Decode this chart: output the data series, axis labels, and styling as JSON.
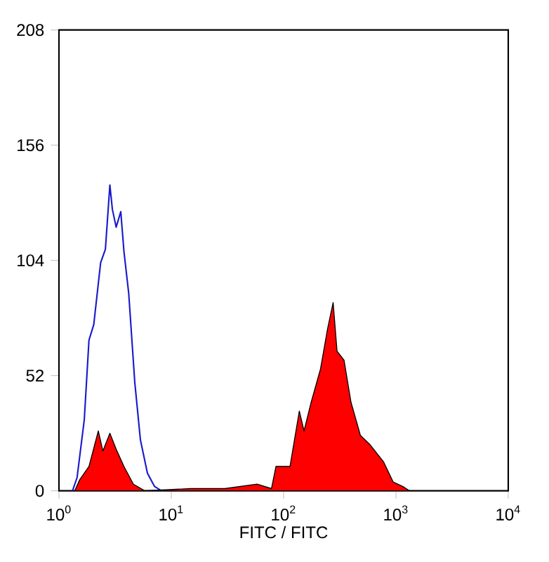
{
  "chart_data": {
    "type": "area",
    "xlabel": "FITC / FITC",
    "log": "x",
    "xlim": [
      1,
      10000
    ],
    "ylim": [
      0,
      208
    ],
    "xticks": [
      {
        "value": 1,
        "label": "10$^{0}$"
      },
      {
        "value": 10,
        "label": "10$^{1}$"
      },
      {
        "value": 100,
        "label": "10$^{2}$"
      },
      {
        "value": 1000,
        "label": "10$^{3}$"
      },
      {
        "value": 10000,
        "label": "10$^{4}$"
      }
    ],
    "yticks": [
      0,
      52,
      104,
      156,
      208
    ],
    "grid": false,
    "series": [
      {
        "type": "line",
        "color": "#1a1acc",
        "x": [
          1.32,
          1.45,
          1.68,
          1.85,
          2.04,
          2.35,
          2.59,
          2.84,
          2.99,
          3.23,
          3.55,
          3.79,
          4.18,
          4.73,
          5.31,
          6.13,
          7.08,
          8.18
        ],
        "values": [
          0,
          6,
          32,
          68,
          75,
          103,
          109,
          138,
          127,
          119,
          126,
          108,
          89,
          49,
          23,
          8,
          2,
          0
        ]
      },
      {
        "color": "#ff0000",
        "x": [
          1.38,
          1.53,
          1.85,
          2.24,
          2.46,
          2.84,
          3.28,
          3.79,
          4.6,
          5.8,
          15,
          30,
          58,
          78,
          85.5,
          114,
          138,
          152,
          176,
          213,
          246,
          276,
          299,
          345,
          398,
          483,
          584,
          778,
          944,
          1146,
          1318
        ],
        "values": [
          0,
          5,
          11,
          27,
          18,
          26,
          18,
          11,
          3,
          0,
          1,
          1,
          3,
          1,
          11,
          11,
          36,
          27,
          40,
          55,
          73,
          85,
          63,
          59,
          40,
          25,
          21,
          13,
          4,
          2,
          0
        ]
      }
    ]
  }
}
